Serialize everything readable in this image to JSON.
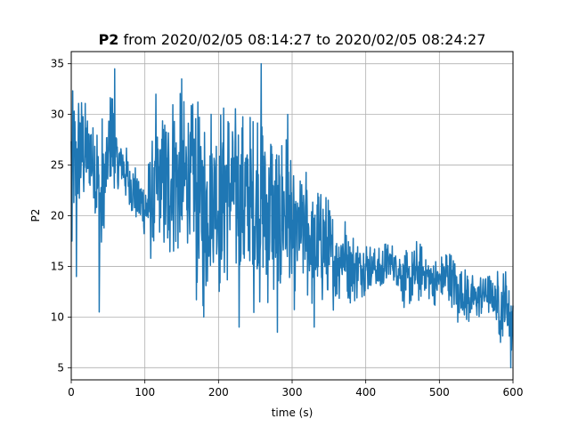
{
  "chart_data": {
    "type": "line",
    "title": {
      "bold": "P2",
      "rest": " from 2020/02/05 08:14:27 to 2020/02/05 08:24:27"
    },
    "xlabel": "time (s)",
    "ylabel": "P2",
    "xlim": [
      0,
      600
    ],
    "ylim": [
      3.8,
      36.2
    ],
    "x_ticks": [
      0,
      100,
      200,
      300,
      400,
      500,
      600
    ],
    "y_ticks": [
      5,
      10,
      15,
      20,
      25,
      30,
      35
    ],
    "grid": true,
    "legend": "none",
    "series": [
      {
        "color": "#1f77b4",
        "upper_envelope": {
          "x": [
            0,
            5,
            10,
            20,
            30,
            40,
            50,
            55,
            60,
            70,
            80,
            90,
            100,
            110,
            120,
            130,
            140,
            150,
            160,
            170,
            180,
            190,
            200,
            210,
            220,
            230,
            240,
            250,
            255,
            260,
            270,
            280,
            290,
            300,
            310,
            320,
            330,
            340,
            350,
            360,
            370,
            380,
            390,
            400,
            410,
            420,
            430,
            440,
            450,
            460,
            470,
            480,
            490,
            500,
            510,
            520,
            530,
            540,
            550,
            560,
            570,
            580,
            590,
            600
          ],
          "y": [
            33,
            32.5,
            33,
            31.5,
            32,
            31,
            30,
            34.5,
            30,
            28,
            26,
            25,
            24,
            28,
            30,
            31,
            33.5,
            32.5,
            31.5,
            32,
            31.5,
            32,
            31.5,
            32,
            32,
            31,
            31,
            31,
            35,
            31,
            31,
            28,
            30,
            25,
            24,
            26,
            23,
            24,
            22,
            20,
            21,
            19,
            18,
            18,
            17,
            17,
            18,
            17,
            17,
            16.5,
            18,
            17,
            16,
            16,
            17.5,
            16,
            15,
            15,
            14,
            15,
            14.5,
            15,
            15,
            14.5
          ]
        },
        "lower_envelope": {
          "x": [
            0,
            5,
            10,
            20,
            30,
            40,
            50,
            60,
            70,
            80,
            90,
            100,
            110,
            120,
            130,
            140,
            150,
            160,
            170,
            180,
            190,
            200,
            210,
            220,
            230,
            240,
            250,
            260,
            270,
            280,
            290,
            300,
            310,
            320,
            330,
            340,
            350,
            360,
            370,
            380,
            390,
            400,
            410,
            420,
            430,
            440,
            450,
            460,
            470,
            480,
            490,
            500,
            510,
            520,
            530,
            540,
            550,
            560,
            570,
            580,
            590,
            600
          ],
          "y": [
            17,
            15.5,
            20,
            20.5,
            19,
            10.5,
            21,
            20,
            22,
            20,
            19,
            17,
            14.5,
            17,
            14,
            15.5,
            13,
            17,
            10.5,
            10,
            13,
            11,
            12.5,
            13,
            12,
            11,
            9.5,
            9,
            11,
            8.5,
            12,
            9,
            13,
            11,
            10,
            10.5,
            9.5,
            11,
            12,
            11,
            11.5,
            12,
            13,
            12,
            13,
            13.5,
            11,
            9.5,
            11,
            12,
            11,
            11,
            11,
            10.5,
            9.5,
            9,
            9.5,
            10,
            10,
            7.5,
            8,
            5
          ]
        },
        "spikes": [
          {
            "x": 1,
            "y": 17.5
          },
          {
            "x": 7,
            "y": 14
          },
          {
            "x": 38,
            "y": 10.5
          },
          {
            "x": 59,
            "y": 34.5
          },
          {
            "x": 115,
            "y": 32
          },
          {
            "x": 150,
            "y": 33.5
          },
          {
            "x": 180,
            "y": 10
          },
          {
            "x": 228,
            "y": 9
          },
          {
            "x": 258,
            "y": 35
          },
          {
            "x": 280,
            "y": 8.5
          },
          {
            "x": 294,
            "y": 30
          },
          {
            "x": 330,
            "y": 9
          },
          {
            "x": 525,
            "y": 9.5
          },
          {
            "x": 583,
            "y": 7.5
          },
          {
            "x": 597,
            "y": 5
          }
        ]
      }
    ]
  }
}
